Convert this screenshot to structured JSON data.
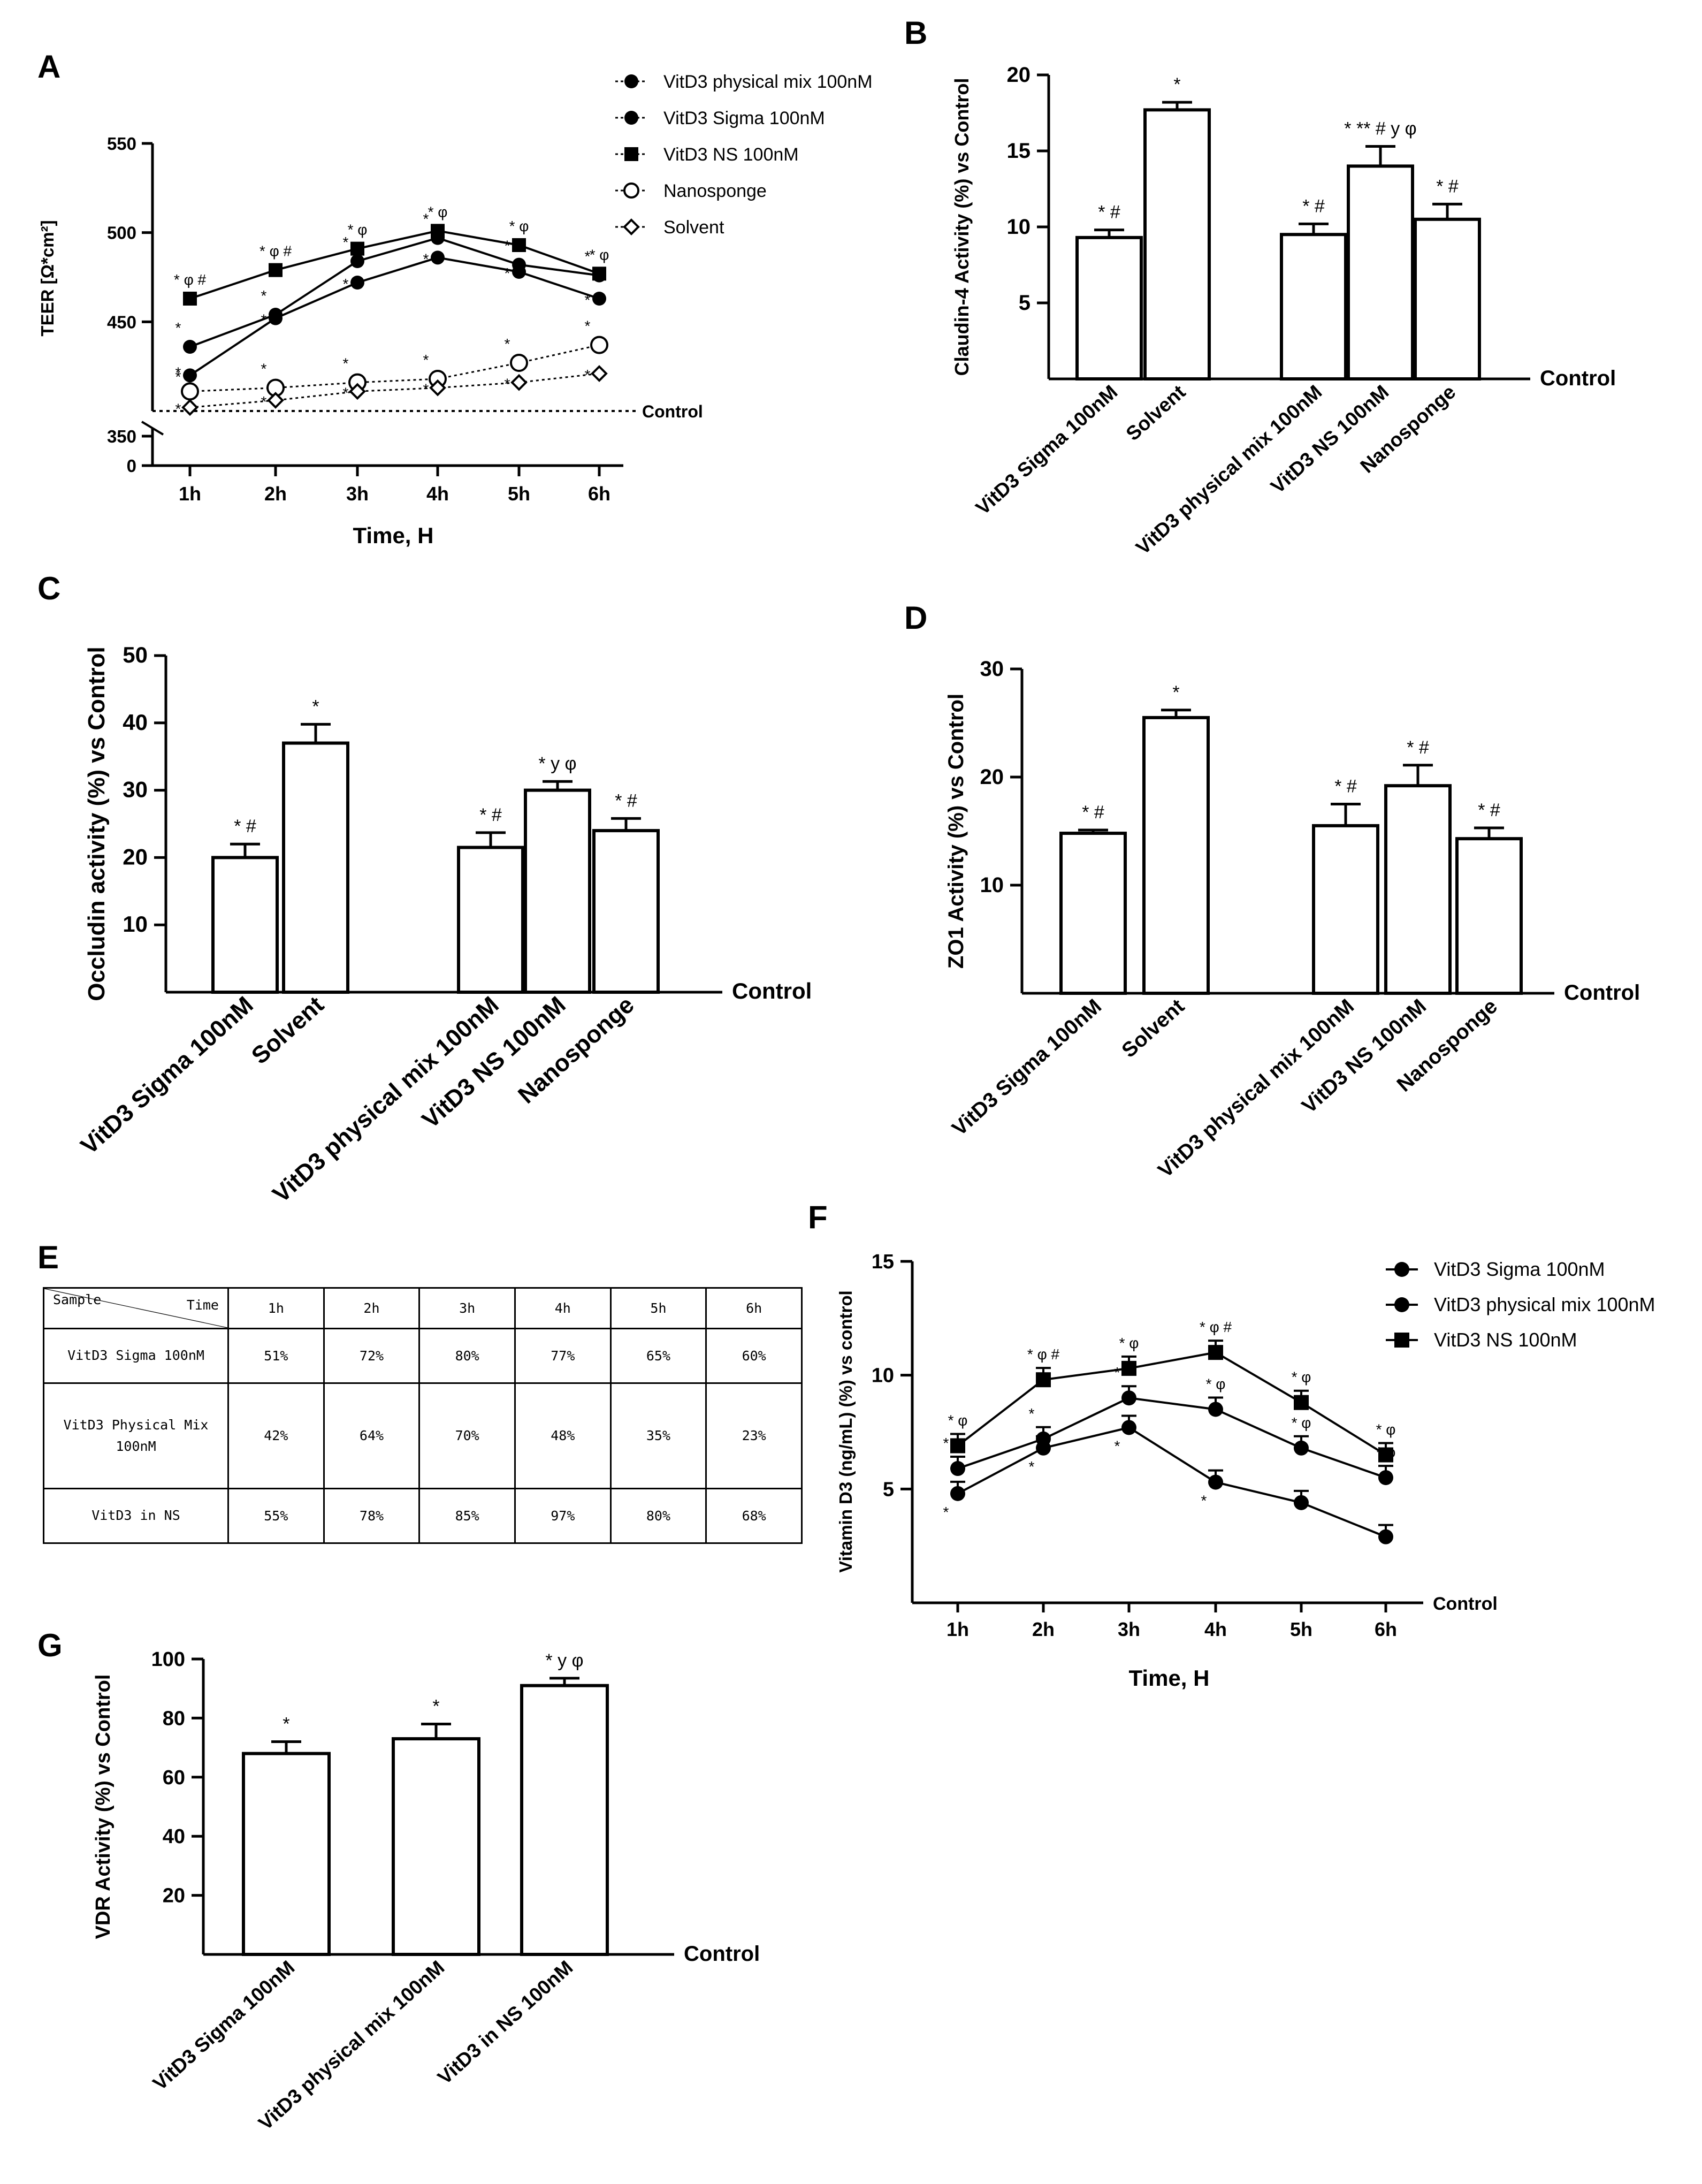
{
  "panels": {
    "A": "A",
    "B": "B",
    "C": "C",
    "D": "D",
    "E": "E",
    "F": "F",
    "G": "G"
  },
  "chart_data": [
    {
      "id": "A",
      "type": "line",
      "xlabel": "Time, H",
      "ylabel": "TEER [Ω*cm²]",
      "categories": [
        "1h",
        "2h",
        "3h",
        "4h",
        "5h",
        "6h"
      ],
      "yticks": [
        0,
        350,
        450,
        500,
        550
      ],
      "ylim_upper": [
        400,
        550
      ],
      "ylim_lower": [
        0,
        350
      ],
      "control_line": {
        "value": 400,
        "label": "Control"
      },
      "series": [
        {
          "name": "VitD3 physical mix 100nM",
          "marker": "circle-filled",
          "line": "solid",
          "values": [
            420,
            452,
            472,
            486,
            478,
            463
          ],
          "annotations": [
            "*",
            "*",
            "*",
            "*",
            "*",
            "*"
          ]
        },
        {
          "name": "VitD3 Sigma 100nM",
          "marker": "circle-filled",
          "line": "solid",
          "values": [
            436,
            454,
            484,
            497,
            482,
            476
          ],
          "annotations": [
            "*",
            "*",
            "*",
            "*",
            "*",
            "*"
          ]
        },
        {
          "name": "VitD3 NS 100nM",
          "marker": "square-filled",
          "line": "solid",
          "values": [
            463,
            479,
            491,
            501,
            493,
            477
          ],
          "annotations": [
            "* φ #",
            "* φ #",
            "* φ",
            "* φ",
            "* φ",
            "* φ"
          ]
        },
        {
          "name": "Nanosponge",
          "marker": "circle-open",
          "line": "dotted",
          "values": [
            411,
            413,
            416,
            418,
            427,
            437
          ],
          "annotations": [
            "*",
            "*",
            "*",
            "*",
            "*",
            "*"
          ]
        },
        {
          "name": "Solvent",
          "marker": "diamond-open",
          "line": "dotted",
          "values": [
            402,
            406,
            411,
            413,
            416,
            421
          ],
          "annotations": [
            "*",
            "*",
            "*",
            "*",
            "*",
            "*"
          ]
        }
      ]
    },
    {
      "id": "B",
      "type": "bar",
      "ylabel": "Claudin-4 Activity (%) vs Control",
      "xbaseline_label": "Control",
      "ylim": [
        0,
        20
      ],
      "yticks": [
        5,
        10,
        15,
        20
      ],
      "categories": [
        "VitD3 Sigma 100nM",
        "Solvent",
        "VitD3 physical mix 100nM",
        "VitD3 NS 100nM",
        "Nanosponge"
      ],
      "values": [
        9.3,
        17.7,
        9.5,
        14.0,
        10.5
      ],
      "errors": [
        0.5,
        0.5,
        0.7,
        1.3,
        1.0
      ],
      "annotations": [
        "* #",
        "*",
        "* #",
        "* ** # y φ",
        "* #"
      ]
    },
    {
      "id": "C",
      "type": "bar",
      "ylabel": "Occludin activity (%) vs Control",
      "xbaseline_label": "Control",
      "ylim": [
        0,
        50
      ],
      "yticks": [
        10,
        20,
        30,
        40,
        50
      ],
      "categories": [
        "VitD3 Sigma 100nM",
        "Solvent",
        "VitD3 physical mix 100nM",
        "VitD3 NS 100nM",
        "Nanosponge"
      ],
      "values": [
        20.0,
        37.0,
        21.5,
        30.0,
        24.0
      ],
      "errors": [
        2.0,
        2.8,
        2.2,
        1.3,
        1.8
      ],
      "annotations": [
        "* #",
        "*",
        "* #",
        "* y φ",
        "* #"
      ]
    },
    {
      "id": "D",
      "type": "bar",
      "ylabel": "ZO1 Activity (%) vs Control",
      "xbaseline_label": "Control",
      "ylim": [
        0,
        30
      ],
      "yticks": [
        10,
        20,
        30
      ],
      "categories": [
        "VitD3 Sigma 100nM",
        "Solvent",
        "VitD3 physical mix 100nM",
        "VitD3 NS 100nM",
        "Nanosponge"
      ],
      "values": [
        14.8,
        25.5,
        15.5,
        19.2,
        14.3
      ],
      "errors": [
        0.3,
        0.7,
        2.0,
        1.9,
        1.0
      ],
      "annotations": [
        "* #",
        "*",
        "* #",
        "* #",
        "* #"
      ]
    },
    {
      "id": "E",
      "type": "table",
      "corner_top": "Time",
      "corner_bottom": "Sample",
      "columns": [
        "1h",
        "2h",
        "3h",
        "4h",
        "5h",
        "6h"
      ],
      "rows": [
        {
          "label": "VitD3 Sigma 100nM",
          "values": [
            "51%",
            "72%",
            "80%",
            "77%",
            "65%",
            "60%"
          ]
        },
        {
          "label": "VitD3 Physical Mix 100nM",
          "values": [
            "42%",
            "64%",
            "70%",
            "48%",
            "35%",
            "23%"
          ]
        },
        {
          "label": "VitD3 in NS",
          "values": [
            "55%",
            "78%",
            "85%",
            "97%",
            "80%",
            "68%"
          ]
        }
      ]
    },
    {
      "id": "F",
      "type": "line",
      "xlabel": "Time, H",
      "ylabel": "Vitamin D3 (ng/mL) (%) vs control",
      "xbaseline_label": "Control",
      "categories": [
        "1h",
        "2h",
        "3h",
        "4h",
        "5h",
        "6h"
      ],
      "ylim": [
        0,
        15
      ],
      "yticks": [
        5,
        10,
        15
      ],
      "series": [
        {
          "name": "VitD3 Sigma 100nM",
          "marker": "circle-filled",
          "values": [
            4.8,
            6.8,
            7.7,
            5.3,
            4.4,
            2.9
          ],
          "annotations": [
            "*",
            "*",
            "*",
            "*",
            "",
            ""
          ]
        },
        {
          "name": "VitD3 physical mix 100nM",
          "marker": "circle-filled",
          "values": [
            5.9,
            7.2,
            9.0,
            8.5,
            6.8,
            5.5
          ],
          "annotations": [
            "*",
            "*",
            "*",
            "* φ",
            "* φ",
            "* φ"
          ]
        },
        {
          "name": "VitD3 NS 100nM",
          "marker": "square-filled",
          "values": [
            6.9,
            9.8,
            10.3,
            11.0,
            8.8,
            6.5
          ],
          "annotations": [
            "* φ",
            "* φ #",
            "* φ",
            "* φ #",
            "* φ",
            "* φ"
          ]
        }
      ]
    },
    {
      "id": "G",
      "type": "bar",
      "ylabel": "VDR Activity (%) vs Control",
      "xbaseline_label": "Control",
      "ylim": [
        0,
        100
      ],
      "yticks": [
        20,
        40,
        60,
        80,
        100
      ],
      "categories": [
        "VitD3 Sigma 100nM",
        "VitD3 physical mix 100nM",
        "VitD3 in NS 100nM"
      ],
      "values": [
        68,
        73,
        91
      ],
      "errors": [
        4,
        5,
        2.5
      ],
      "annotations": [
        "*",
        "*",
        "* y φ"
      ]
    }
  ]
}
